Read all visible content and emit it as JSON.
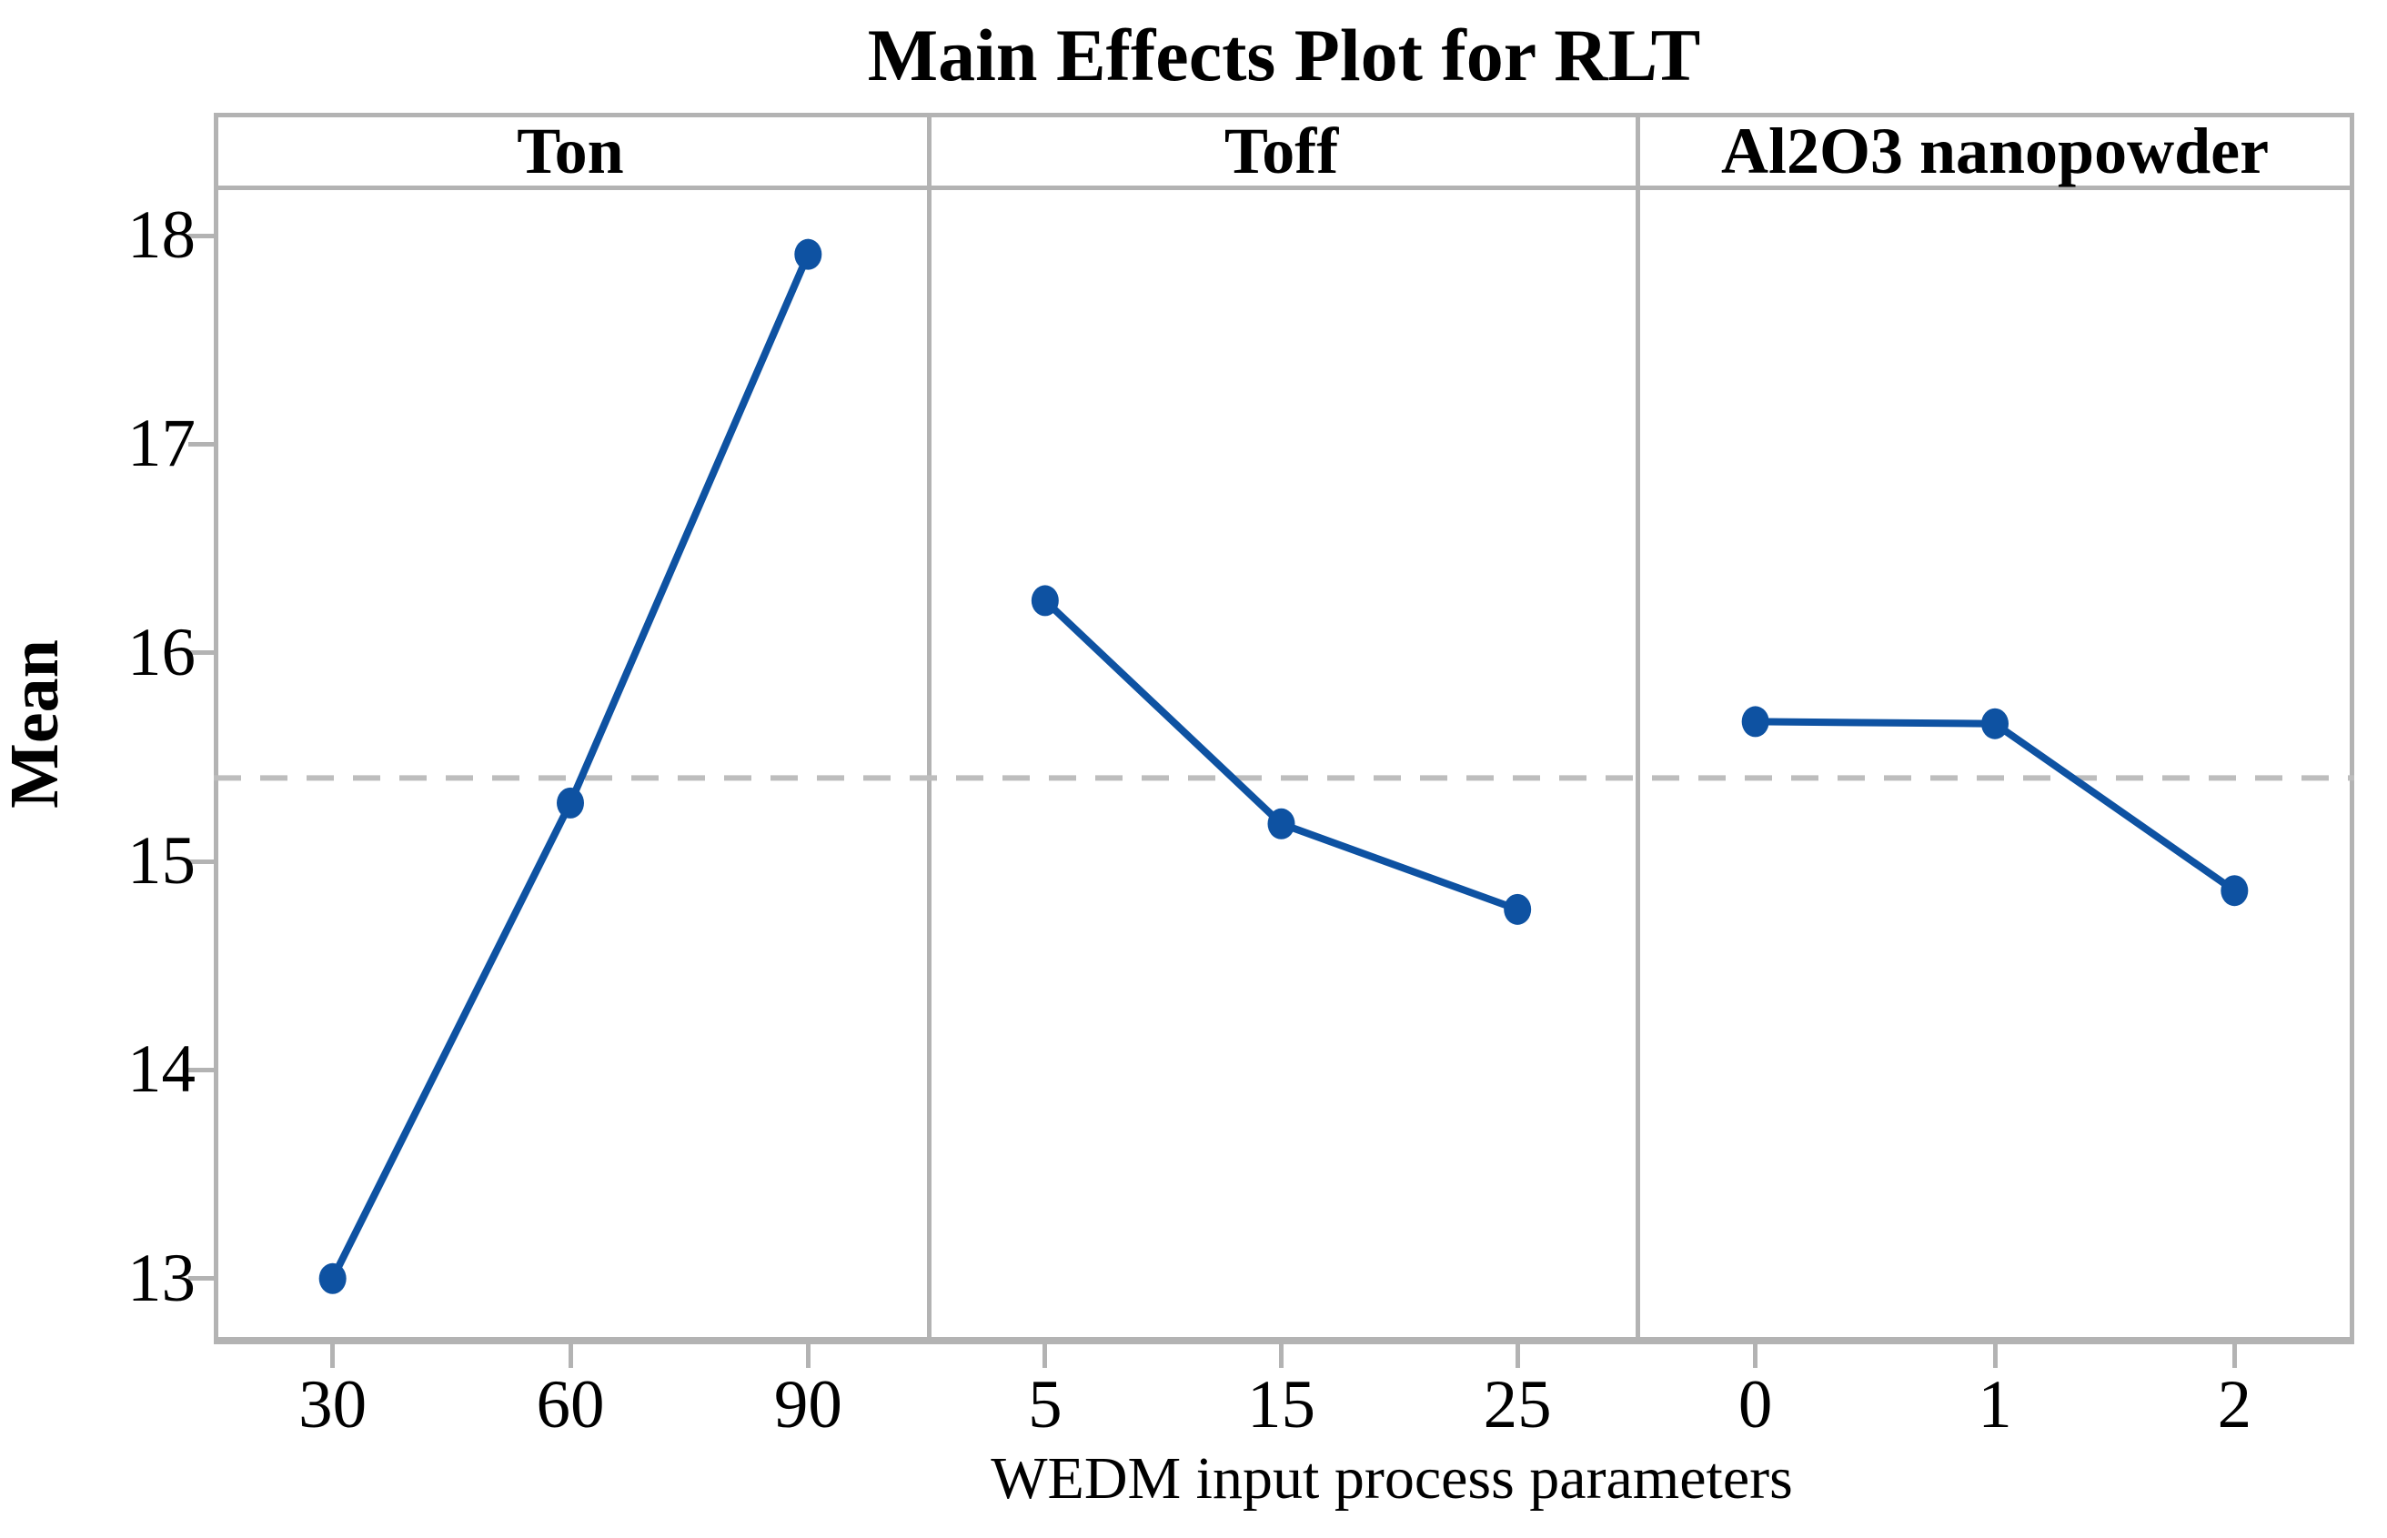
{
  "colors": {
    "series_blue": "#0E52A2",
    "border_gray": "#B3B3B3",
    "dashed_gray": "#BDBDBD",
    "text_black": "#000000",
    "background": "#FFFFFF"
  },
  "chart_data": {
    "type": "line",
    "title": "Main Effects Plot for RLT",
    "ylabel": "Mean",
    "xlabel": "WEDM input process parameters",
    "ylim": [
      12.72,
      18.24
    ],
    "y_ticks": [
      18,
      17,
      16,
      15,
      14,
      13
    ],
    "grid": "off",
    "legend": "none",
    "grand_mean": 15.4,
    "grand_mean_line_style": "dashed",
    "panels": [
      {
        "label": "Ton",
        "categories": [
          "30",
          "60",
          "90"
        ],
        "values": [
          13.0,
          15.28,
          17.91
        ]
      },
      {
        "label": "Toff",
        "categories": [
          "5",
          "15",
          "25"
        ],
        "values": [
          16.25,
          15.18,
          14.77
        ]
      },
      {
        "label": "Al2O3 nanopowder",
        "categories": [
          "0",
          "1",
          "2"
        ],
        "values": [
          15.67,
          15.66,
          14.86
        ]
      }
    ]
  }
}
